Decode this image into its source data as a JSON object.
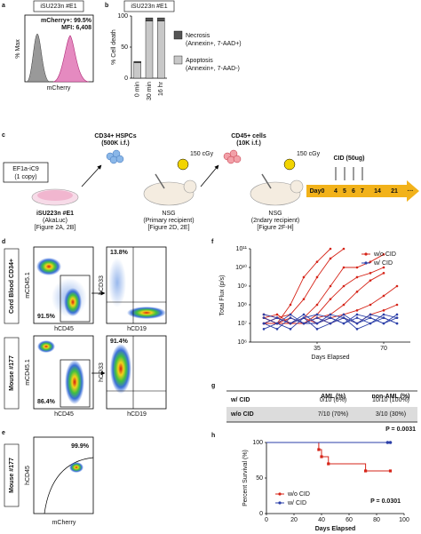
{
  "panel_labels": [
    "a",
    "b",
    "c",
    "d",
    "e",
    "f",
    "g",
    "h"
  ],
  "panel_a": {
    "title": "iSU223n #E1",
    "stats": [
      "mCherry+: 99.5%",
      "MFI: 6,408"
    ],
    "ylabel": "% Max",
    "xlabel": "mCherry"
  },
  "panel_c": {
    "construct": [
      "EF1a-iC9",
      "(1 copy)"
    ],
    "cell_line": [
      "iSU223n #E1",
      "(AkaLuc)",
      "[Figure 2A, 2B]"
    ],
    "donor_1": [
      "CD34+ HSPCs",
      "(500K i.f.)"
    ],
    "dose_1": "150 cGy",
    "recipient_1": [
      "NSG",
      "(Primary recipient)",
      "[Figure 2D, 2E]"
    ],
    "donor_2": [
      "CD45+ cells",
      "(10K i.f.)"
    ],
    "dose_2": "150 cGy",
    "recipient_2": [
      "NSG",
      "(2ndary recipient)",
      "[Figure 2F-H]"
    ],
    "treatment": "CID (50ug)",
    "timeline": [
      "Day0",
      "4",
      "5",
      "6",
      "7",
      "14",
      "21",
      "···"
    ]
  },
  "panel_d": {
    "rows": [
      "Cord Blood CD34+",
      "Mouse #177"
    ],
    "left_y": "mCD45.1",
    "left_x": "hCD45",
    "right_y": "hCD33",
    "right_x": "hCD19",
    "gates": [
      [
        "91.5%",
        "13.8%"
      ],
      [
        "86.4%",
        "91.4%"
      ]
    ]
  },
  "panel_e": {
    "row": "Mouse #177",
    "ylabel": "hCD45",
    "xlabel": "mCherry",
    "gate": "99.9%"
  },
  "panel_g": {
    "header": [
      "AML (%)",
      "non-AML (%)"
    ],
    "rows": [
      [
        "w/ CID",
        "0/10 (0%)",
        "10/10 (100%)"
      ],
      [
        "w/o CID",
        "7/10 (70%)",
        "3/10 (30%)"
      ]
    ],
    "row_colors": [
      "#2b3fa8",
      "#d62418"
    ],
    "p_value": "P = 0.0031"
  },
  "chart_data": [
    {
      "type": "stacked_bar",
      "title": "iSU223n #E1",
      "ylabel": "% Cell death",
      "categories": [
        "0 min",
        "30 min",
        "16 hr"
      ],
      "series": [
        {
          "name": "Apoptosis",
          "detail": "(Annexin+, 7-AAD-)",
          "color": "#c8c8c8",
          "values": [
            25,
            92,
            92
          ]
        },
        {
          "name": "Necrosis",
          "detail": "(Annexin+, 7-AAD+)",
          "color": "#555555",
          "values": [
            2,
            5,
            5
          ]
        }
      ],
      "ylim": [
        0,
        100
      ],
      "yticks": [
        0,
        50,
        100
      ]
    },
    {
      "type": "line",
      "log_y": true,
      "ylabel": "Total Flux (p/s)",
      "xlabel": "Days Elapsed",
      "x": [
        7,
        14,
        21,
        28,
        35,
        42,
        49,
        56,
        63,
        70,
        77
      ],
      "xlim": [
        0,
        84
      ],
      "xticks": [
        35,
        70
      ],
      "ylim": [
        1000000.0,
        100000000000.0
      ],
      "yticks": [
        {
          "value": 1000000.0,
          "label": "10⁶"
        },
        {
          "value": 10000000.0,
          "label": "10⁷"
        },
        {
          "value": 100000000.0,
          "label": "10⁸"
        },
        {
          "value": 1000000000.0,
          "label": "10⁹"
        },
        {
          "value": 10000000000.0,
          "label": "10¹⁰"
        },
        {
          "value": 100000000000.0,
          "label": "10¹¹"
        }
      ],
      "legend": "top-right",
      "series": [
        {
          "name": "w/o CID",
          "color": "#d62418",
          "values": [
            [
              20000000.0,
              10000000.0,
              100000000.0,
              3000000000.0,
              20000000000.0,
              100000000000.0,
              null,
              null,
              null,
              null,
              null
            ],
            [
              30000000.0,
              20000000.0,
              30000000.0,
              200000000.0,
              3000000000.0,
              30000000000.0,
              100000000000.0,
              null,
              null,
              null,
              null
            ],
            [
              10000000.0,
              20000000.0,
              10000000.0,
              20000000.0,
              100000000.0,
              1000000000.0,
              10000000000.0,
              10000000000.0,
              20000000000.0,
              50000000000.0,
              null
            ],
            [
              20000000.0,
              30000000.0,
              10000000.0,
              10000000.0,
              30000000.0,
              200000000.0,
              1000000000.0,
              3000000000.0,
              5000000000.0,
              10000000000.0,
              null
            ],
            [
              10000000.0,
              10000000.0,
              20000000.0,
              10000000.0,
              20000000.0,
              30000000.0,
              100000000.0,
              500000000.0,
              2000000000.0,
              5000000000.0,
              null
            ],
            [
              20000000.0,
              10000000.0,
              10000000.0,
              20000000.0,
              10000000.0,
              20000000.0,
              30000000.0,
              50000000.0,
              100000000.0,
              300000000.0,
              1000000000.0
            ],
            [
              10000000.0,
              20000000.0,
              10000000.0,
              10000000.0,
              20000000.0,
              10000000.0,
              20000000.0,
              10000000.0,
              30000000.0,
              50000000.0,
              100000000.0
            ]
          ]
        },
        {
          "name": "w/ CID",
          "color": "#2b3fa8",
          "values": [
            [
              10000000.0,
              20000000.0,
              10000000.0,
              30000000.0,
              10000000.0,
              20000000.0,
              10000000.0,
              20000000.0,
              10000000.0,
              30000000.0,
              20000000.0
            ],
            [
              20000000.0,
              10000000.0,
              30000000.0,
              10000000.0,
              20000000.0,
              10000000.0,
              30000000.0,
              10000000.0,
              20000000.0,
              10000000.0,
              30000000.0
            ],
            [
              5000000.0,
              10000000.0,
              5000000.0,
              20000000.0,
              5000000.0,
              10000000.0,
              20000000.0,
              5000000.0,
              10000000.0,
              20000000.0,
              10000000.0
            ],
            [
              30000000.0,
              20000000.0,
              10000000.0,
              20000000.0,
              30000000.0,
              20000000.0,
              10000000.0,
              30000000.0,
              20000000.0,
              10000000.0,
              20000000.0
            ],
            [
              10000000.0,
              5000000.0,
              20000000.0,
              10000000.0,
              10000000.0,
              30000000.0,
              20000000.0,
              10000000.0,
              30000000.0,
              20000000.0,
              10000000.0
            ]
          ]
        }
      ]
    },
    {
      "type": "survival",
      "ylabel": "Percent Survival (%)",
      "xlabel": "Days Elapsed",
      "xlim": [
        0,
        100
      ],
      "xticks": [
        0,
        20,
        40,
        60,
        80,
        100
      ],
      "ylim": [
        0,
        100
      ],
      "yticks": [
        0,
        50,
        100
      ],
      "legend": "bottom-left",
      "annotation": "P = 0.0301",
      "series": [
        {
          "name": "w/o CID",
          "color": "#d62418",
          "x": [
            0,
            38,
            40,
            45,
            72,
            90
          ],
          "values": [
            100,
            90,
            80,
            70,
            60,
            60
          ]
        },
        {
          "name": "w/ CID",
          "color": "#2b3fa8",
          "x": [
            0,
            88,
            90
          ],
          "values": [
            100,
            100,
            100
          ]
        }
      ]
    }
  ]
}
